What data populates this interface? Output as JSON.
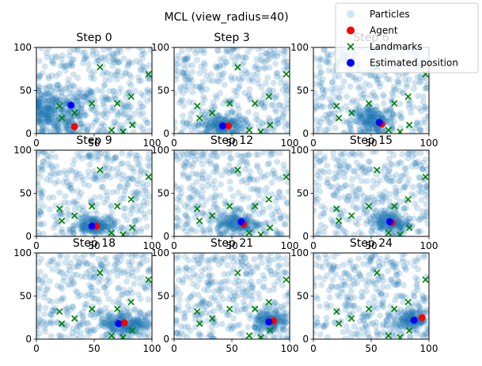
{
  "chart_data": {
    "type": "scatter",
    "title": "MCL (view_radius=40)",
    "xlim": [
      0,
      100
    ],
    "ylim": [
      0,
      100
    ],
    "x_ticks": [
      0,
      50,
      100
    ],
    "y_ticks": [
      0,
      50,
      100
    ],
    "grid": false,
    "legend_position": "top-right",
    "colors": {
      "particles": "#1f77b4",
      "agent": "#ff0000",
      "landmarks": "#008000",
      "estimate": "#0000ff"
    },
    "legend": {
      "particles": "Particles",
      "agent": "Agent",
      "landmarks": "Landmarks",
      "estimate": "Estimated position"
    },
    "landmarks": [
      [
        20,
        32
      ],
      [
        22,
        18
      ],
      [
        33,
        24
      ],
      [
        48,
        35
      ],
      [
        55,
        77
      ],
      [
        70,
        35
      ],
      [
        82,
        43
      ],
      [
        83,
        10
      ],
      [
        97,
        69
      ],
      [
        65,
        4
      ],
      [
        75,
        2
      ]
    ],
    "panels": [
      {
        "title": "Step 0",
        "agent": [
          33,
          8
        ],
        "estimate": [
          30,
          33
        ],
        "cluster": [
          [
            12,
            28,
            22,
            12,
            260
          ],
          [
            28,
            10,
            10,
            8,
            60
          ]
        ]
      },
      {
        "title": "Step 3",
        "agent": [
          47,
          9
        ],
        "estimate": [
          42,
          9
        ],
        "cluster": [
          [
            40,
            10,
            10,
            6,
            170
          ]
        ]
      },
      {
        "title": "Step 6",
        "agent": [
          59,
          11
        ],
        "estimate": [
          57,
          13
        ],
        "cluster": [
          [
            52,
            15,
            9,
            8,
            170
          ]
        ]
      },
      {
        "title": "Step 9",
        "agent": [
          52,
          12
        ],
        "estimate": [
          48,
          12
        ],
        "cluster": [
          [
            50,
            13,
            8,
            5,
            170
          ]
        ]
      },
      {
        "title": "Step 12",
        "agent": [
          60,
          14
        ],
        "estimate": [
          58,
          17
        ],
        "cluster": [
          [
            55,
            15,
            9,
            6,
            160
          ]
        ]
      },
      {
        "title": "Step 15",
        "agent": [
          68,
          16
        ],
        "estimate": [
          66,
          17
        ],
        "cluster": [
          [
            66,
            16,
            8,
            6,
            160
          ]
        ]
      },
      {
        "title": "Step 18",
        "agent": [
          76,
          19
        ],
        "estimate": [
          71,
          18
        ],
        "cluster": [
          [
            78,
            18,
            11,
            7,
            220
          ]
        ]
      },
      {
        "title": "Step 21",
        "agent": [
          86,
          21
        ],
        "estimate": [
          82,
          20
        ],
        "cluster": [
          [
            84,
            20,
            7,
            7,
            160
          ]
        ]
      },
      {
        "title": "Step 24",
        "agent": [
          94,
          25
        ],
        "estimate": [
          87,
          22
        ],
        "cluster": [
          [
            86,
            22,
            8,
            5,
            150
          ]
        ]
      }
    ]
  }
}
